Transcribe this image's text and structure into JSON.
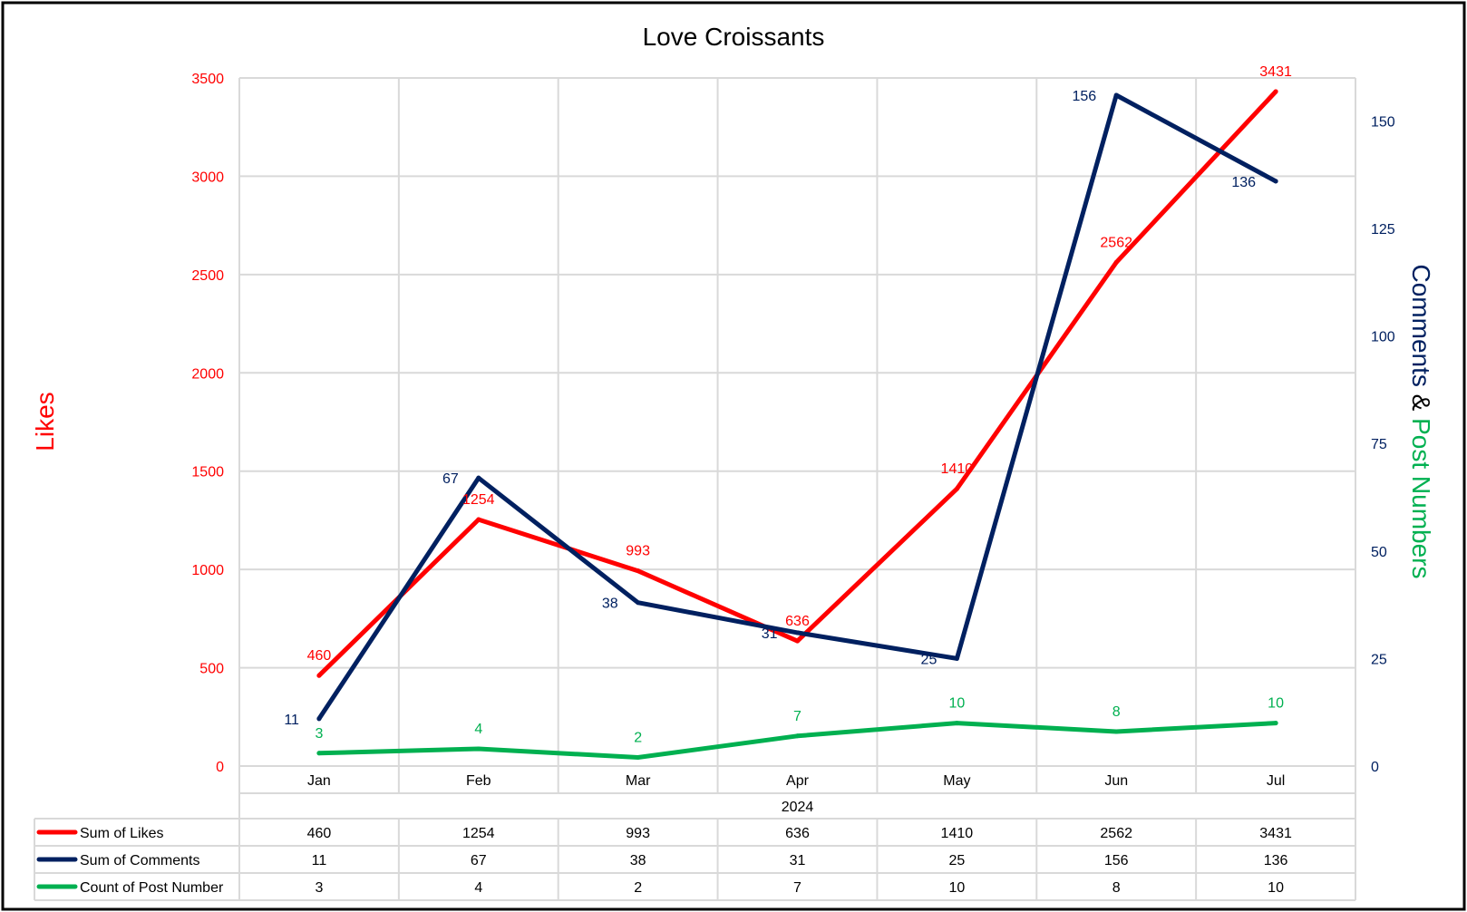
{
  "chart_data": {
    "type": "line",
    "title": "Love Croissants",
    "categories": [
      "Jan",
      "Feb",
      "Mar",
      "Apr",
      "May",
      "Jun",
      "Jul"
    ],
    "group_label": "2024",
    "series": [
      {
        "name": "Sum of Likes",
        "values": [
          460,
          1254,
          993,
          636,
          1410,
          2562,
          3431
        ],
        "color": "#ff0000",
        "axis": "left"
      },
      {
        "name": "Sum of Comments",
        "values": [
          11,
          67,
          38,
          31,
          25,
          156,
          136
        ],
        "color": "#002060",
        "axis": "right"
      },
      {
        "name": "Count of Post Number",
        "values": [
          3,
          4,
          2,
          7,
          10,
          8,
          10
        ],
        "color": "#00b050",
        "axis": "right"
      }
    ],
    "y_left": {
      "label": "Likes",
      "color": "#ff0000",
      "ylim": [
        0,
        3500
      ],
      "ticks": [
        0,
        500,
        1000,
        1500,
        2000,
        2500,
        3000,
        3500
      ]
    },
    "y_right": {
      "label_parts": [
        {
          "text": "Comments",
          "color": "#002060"
        },
        {
          "text": " & ",
          "color": "#000000"
        },
        {
          "text": "Post Numbers",
          "color": "#00b050"
        }
      ],
      "color": "#002060",
      "ylim": [
        0,
        160
      ],
      "ticks": [
        0,
        25,
        50,
        75,
        100,
        125,
        150
      ]
    },
    "grid": true,
    "legend": "data-table",
    "data_labels": true
  }
}
